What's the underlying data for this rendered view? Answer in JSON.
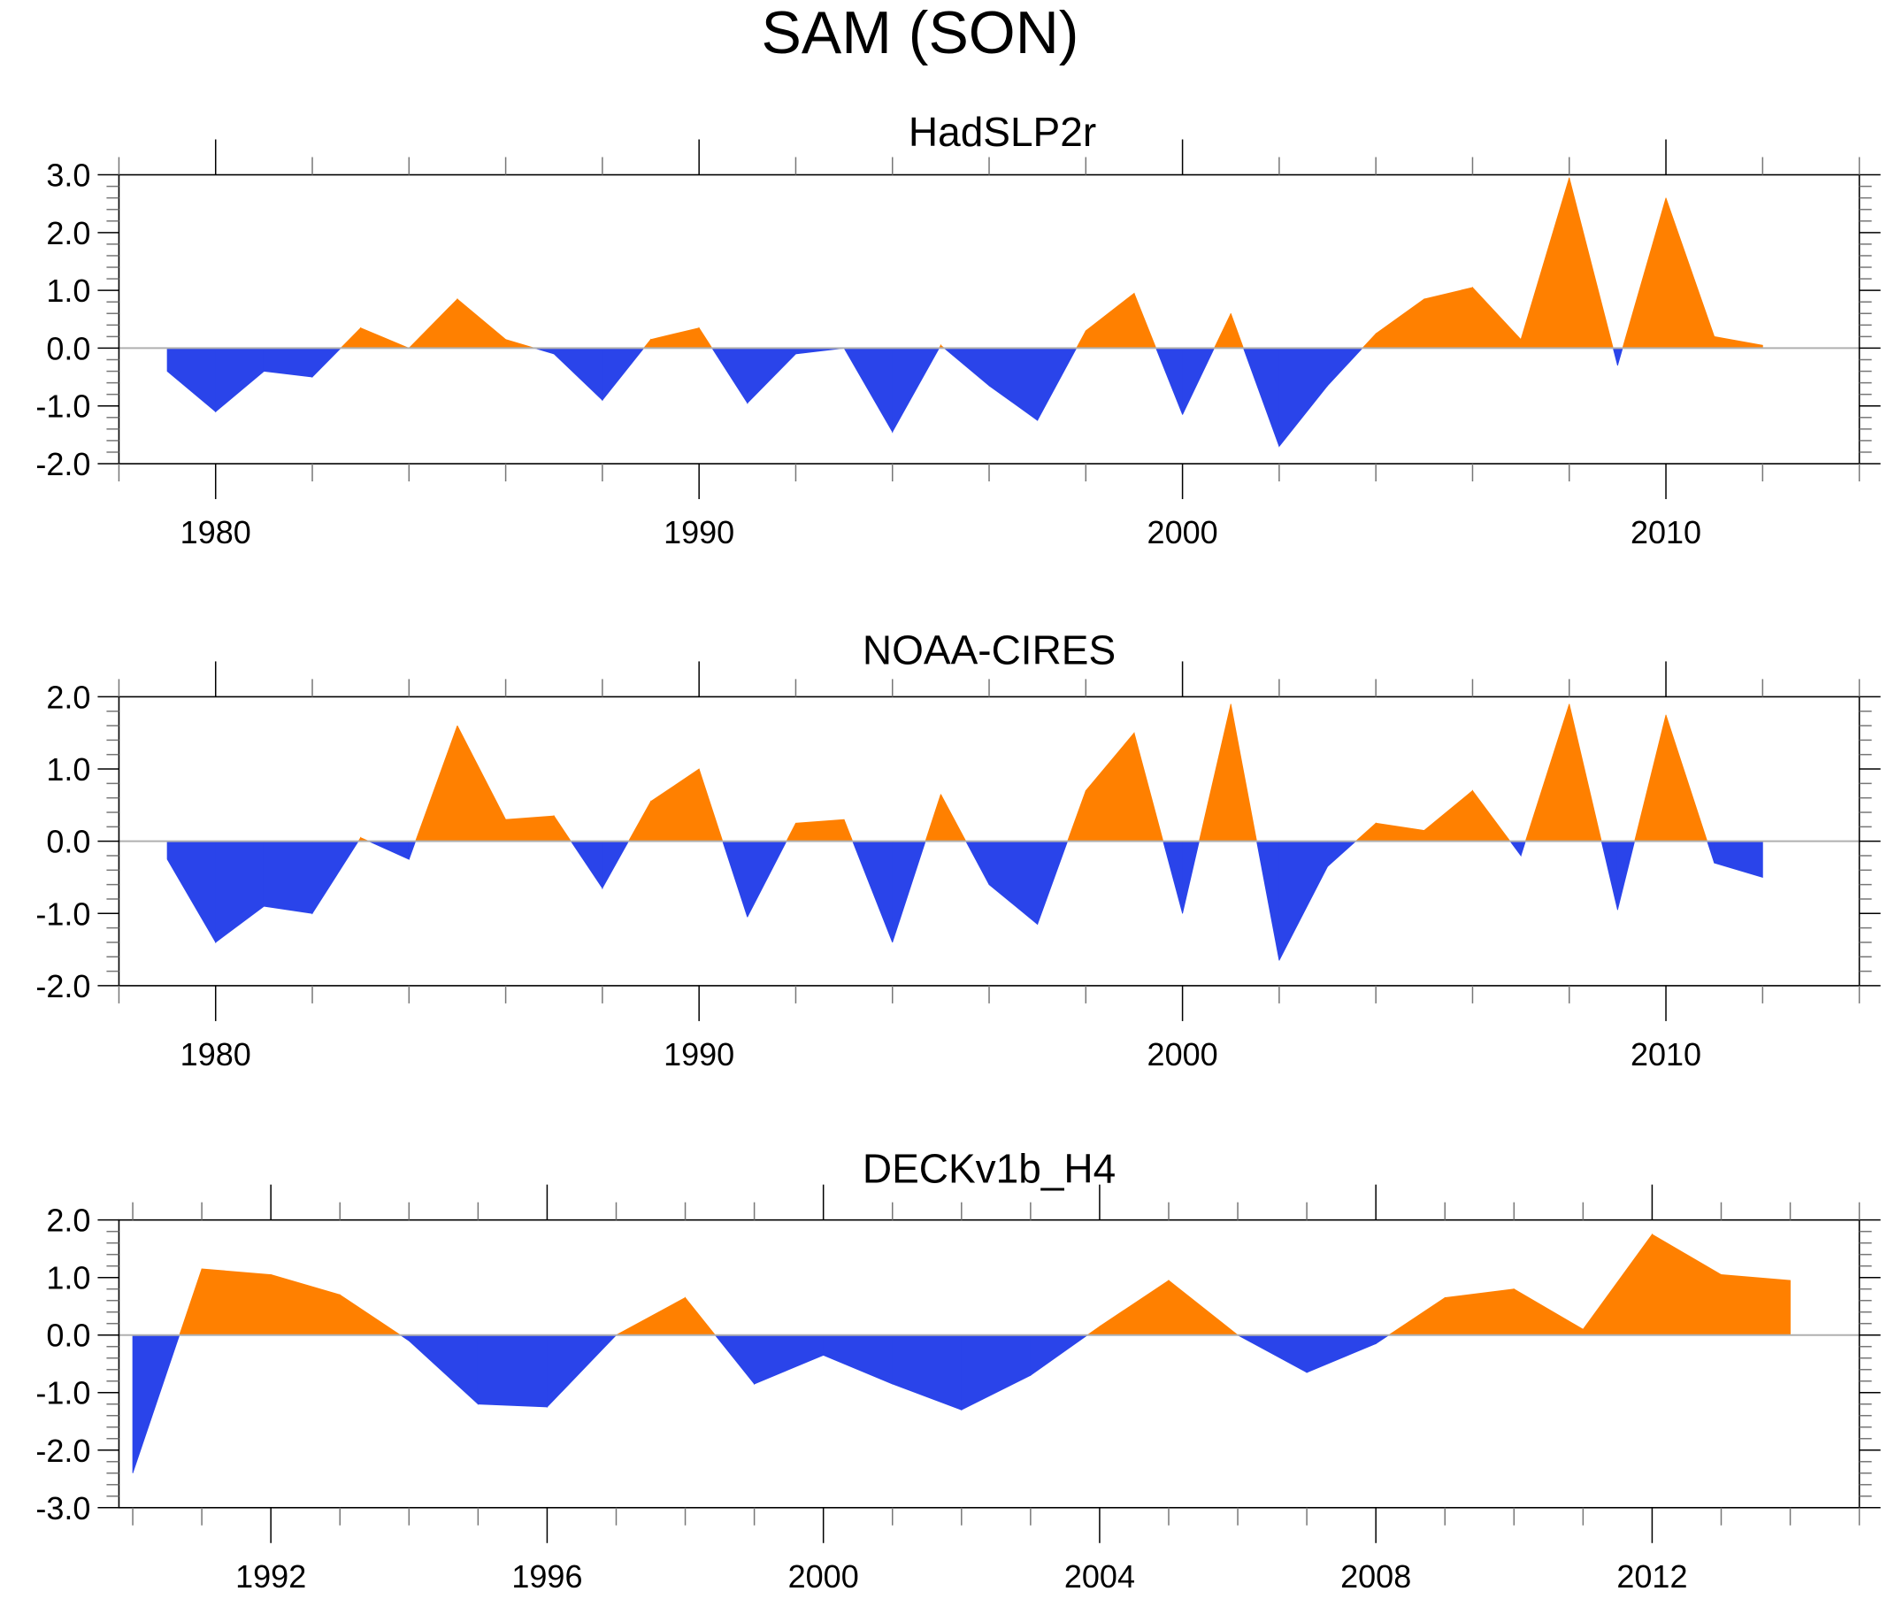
{
  "title": "SAM (SON)",
  "colors": {
    "positive": "#ff8000",
    "negative": "#2a44ea",
    "zero_line": "#b0b0b0",
    "axis": "#000000"
  },
  "chart_data": [
    {
      "type": "area",
      "title": "HadSLP2r",
      "xlabel": "",
      "ylabel": "",
      "xlim": [
        1978,
        2014
      ],
      "ylim": [
        -2.0,
        3.0
      ],
      "xticks": [
        1980,
        1990,
        2000,
        2010
      ],
      "xtick_labels": [
        "1980",
        "1990",
        "2000",
        "2010"
      ],
      "x_minor_step": 2,
      "yticks": [
        3.0,
        2.0,
        1.0,
        0.0,
        -1.0,
        -2.0
      ],
      "ytick_labels": [
        "3.0",
        "2.0",
        "1.0",
        "0.0",
        "-1.0",
        "-2.0"
      ],
      "x": [
        1979,
        1980,
        1981,
        1982,
        1983,
        1984,
        1985,
        1986,
        1987,
        1988,
        1989,
        1990,
        1991,
        1992,
        1993,
        1994,
        1995,
        1996,
        1997,
        1998,
        1999,
        2000,
        2001,
        2002,
        2003,
        2004,
        2005,
        2006,
        2007,
        2008,
        2009,
        2010,
        2011,
        2012
      ],
      "values": [
        -0.4,
        -1.1,
        -0.4,
        -0.5,
        0.35,
        0.0,
        0.85,
        0.15,
        -0.1,
        -0.9,
        0.15,
        0.35,
        -0.95,
        -0.1,
        0.0,
        -1.45,
        0.05,
        -0.65,
        -1.25,
        0.3,
        0.95,
        -1.15,
        0.6,
        -1.7,
        -0.65,
        0.25,
        0.85,
        1.05,
        0.15,
        2.95,
        -0.3,
        2.6,
        0.2,
        0.05
      ]
    },
    {
      "type": "area",
      "title": "NOAA-CIRES",
      "xlabel": "",
      "ylabel": "",
      "xlim": [
        1978,
        2014
      ],
      "ylim": [
        -2.0,
        2.0
      ],
      "xticks": [
        1980,
        1990,
        2000,
        2010
      ],
      "xtick_labels": [
        "1980",
        "1990",
        "2000",
        "2010"
      ],
      "x_minor_step": 2,
      "yticks": [
        2.0,
        1.0,
        0.0,
        -1.0,
        -2.0
      ],
      "ytick_labels": [
        "2.0",
        "1.0",
        "0.0",
        "-1.0",
        "-2.0"
      ],
      "x": [
        1979,
        1980,
        1981,
        1982,
        1983,
        1984,
        1985,
        1986,
        1987,
        1988,
        1989,
        1990,
        1991,
        1992,
        1993,
        1994,
        1995,
        1996,
        1997,
        1998,
        1999,
        2000,
        2001,
        2002,
        2003,
        2004,
        2005,
        2006,
        2007,
        2008,
        2009,
        2010,
        2011,
        2012
      ],
      "values": [
        -0.25,
        -1.4,
        -0.9,
        -1.0,
        0.05,
        -0.25,
        1.6,
        0.3,
        0.35,
        -0.65,
        0.55,
        1.0,
        -1.05,
        0.25,
        0.3,
        -1.4,
        0.65,
        -0.6,
        -1.15,
        0.7,
        1.5,
        -1.0,
        1.9,
        -1.65,
        -0.35,
        0.25,
        0.15,
        0.7,
        -0.2,
        1.9,
        -0.95,
        1.75,
        -0.3,
        -0.5
      ]
    },
    {
      "type": "area",
      "title": "DECKv1b_H4",
      "xlabel": "",
      "ylabel": "",
      "xlim": [
        1989.8,
        2015.0
      ],
      "ylim": [
        -3.0,
        2.0
      ],
      "xticks": [
        1992,
        1996,
        2000,
        2004,
        2008,
        2012
      ],
      "xtick_labels": [
        "1992",
        "1996",
        "2000",
        "2004",
        "2008",
        "2012"
      ],
      "x_minor_step": 1,
      "yticks": [
        2.0,
        1.0,
        0.0,
        -1.0,
        -2.0,
        -3.0
      ],
      "ytick_labels": [
        "2.0",
        "1.0",
        "0.0",
        "-1.0",
        "-2.0",
        "-3.0"
      ],
      "x": [
        1990,
        1991,
        1992,
        1993,
        1994,
        1995,
        1996,
        1997,
        1998,
        1999,
        2000,
        2001,
        2002,
        2003,
        2004,
        2005,
        2006,
        2007,
        2008,
        2009,
        2010,
        2011,
        2012,
        2013,
        2014
      ],
      "values": [
        -2.4,
        1.15,
        1.05,
        0.7,
        -0.1,
        -1.2,
        -1.25,
        0.0,
        0.65,
        -0.85,
        -0.35,
        -0.85,
        -1.3,
        -0.7,
        0.15,
        0.95,
        0.0,
        -0.65,
        -0.15,
        0.65,
        0.8,
        0.1,
        1.75,
        1.05,
        0.95
      ]
    }
  ]
}
